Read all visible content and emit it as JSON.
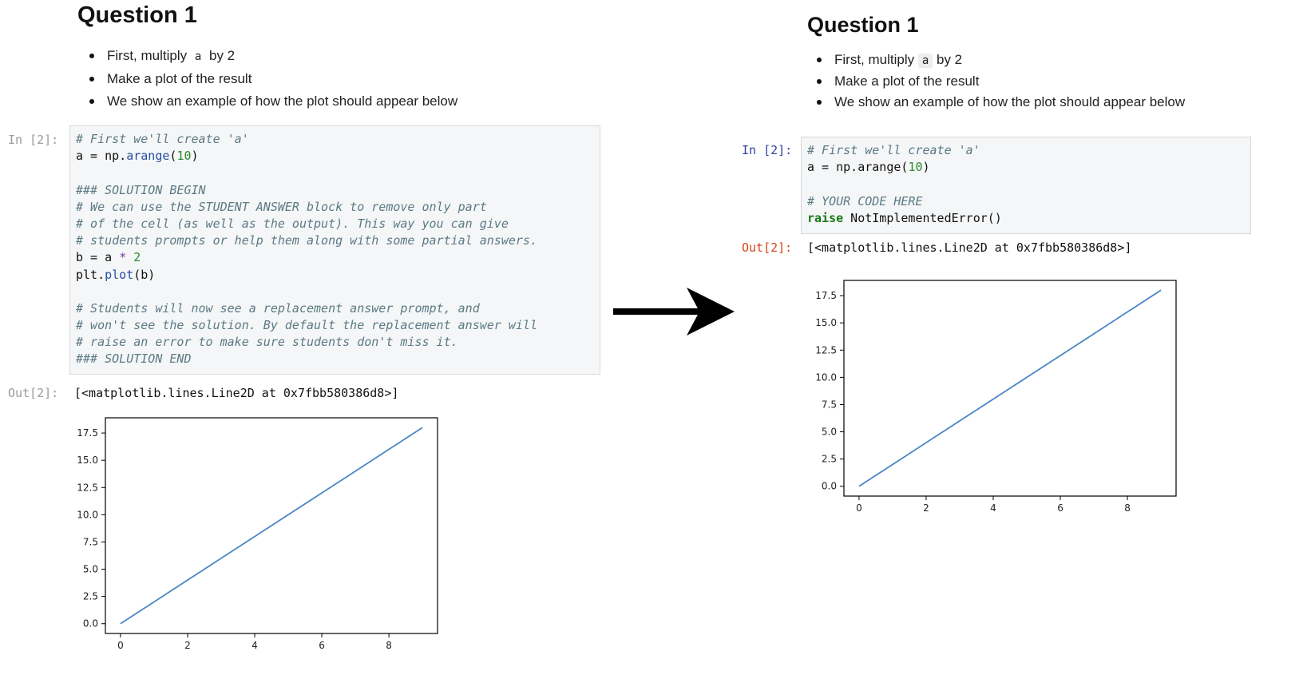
{
  "left": {
    "heading": "Question 1",
    "bullets": {
      "b1_before": "First, multiply ",
      "b1_code": "a",
      "b1_after": " by 2",
      "b2": "Make a plot of the result",
      "b3": "We show an example of how the plot should appear below"
    },
    "in_prompt": "In [2]:",
    "code": {
      "l1": "# First we'll create 'a'",
      "l2_a": "a = np.",
      "l2_fn": "arange",
      "l2_p1": "(",
      "l2_num": "10",
      "l2_p2": ")",
      "l4": "### SOLUTION BEGIN",
      "l5": "# We can use the STUDENT ANSWER block to remove only part",
      "l6": "# of the cell (as well as the output). This way you can give",
      "l7": "# students prompts or help them along with some partial answers.",
      "l8_a": "b = a ",
      "l8_op": "*",
      "l8_sp": " ",
      "l8_num": "2",
      "l9_a": "plt.",
      "l9_fn": "plot",
      "l9_b": "(b)",
      "l11": "# Students will now see a replacement answer prompt, and",
      "l12": "# won't see the solution. By default the replacement answer will",
      "l13": "# raise an error to make sure students don't miss it.",
      "l14": "### SOLUTION END"
    },
    "out_prompt": "Out[2]:",
    "out_text": "[<matplotlib.lines.Line2D at 0x7fbb580386d8>]"
  },
  "right": {
    "heading": "Question 1",
    "bullets": {
      "b1_before": "First, multiply ",
      "b1_code": "a",
      "b1_after": " by 2",
      "b2": "Make a plot of the result",
      "b3": "We show an example of how the plot should appear below"
    },
    "in_prompt": "In [2]:",
    "code": {
      "l1": "# First we'll create 'a'",
      "l2_a": "a = np.arange(",
      "l2_num": "10",
      "l2_p2": ")",
      "l4": "# YOUR CODE HERE",
      "l5_kw": "raise",
      "l5_rest": " NotImplementedError()"
    },
    "out_prompt": "Out[2]:",
    "out_text": "[<matplotlib.lines.Line2D at 0x7fbb580386d8>]"
  },
  "colors": {
    "line": "#4a86c5",
    "arrow": "#000000"
  },
  "chart_data": [
    {
      "type": "line",
      "x": [
        0,
        1,
        2,
        3,
        4,
        5,
        6,
        7,
        8,
        9
      ],
      "series": [
        {
          "values": [
            0,
            2,
            4,
            6,
            8,
            10,
            12,
            14,
            16,
            18
          ]
        }
      ],
      "xticks": [
        "0",
        "2",
        "4",
        "6",
        "8"
      ],
      "yticks": [
        "0.0",
        "2.5",
        "5.0",
        "7.5",
        "10.0",
        "12.5",
        "15.0",
        "17.5"
      ],
      "xlim": [
        -0.45,
        9.45
      ],
      "ylim": [
        -0.9,
        18.9
      ],
      "grid": false
    },
    {
      "type": "line",
      "x": [
        0,
        1,
        2,
        3,
        4,
        5,
        6,
        7,
        8,
        9
      ],
      "series": [
        {
          "values": [
            0,
            2,
            4,
            6,
            8,
            10,
            12,
            14,
            16,
            18
          ]
        }
      ],
      "xticks": [
        "0",
        "2",
        "4",
        "6",
        "8"
      ],
      "yticks": [
        "0.0",
        "2.5",
        "5.0",
        "7.5",
        "10.0",
        "12.5",
        "15.0",
        "17.5"
      ],
      "xlim": [
        -0.45,
        9.45
      ],
      "ylim": [
        -0.9,
        18.9
      ],
      "grid": false
    }
  ]
}
